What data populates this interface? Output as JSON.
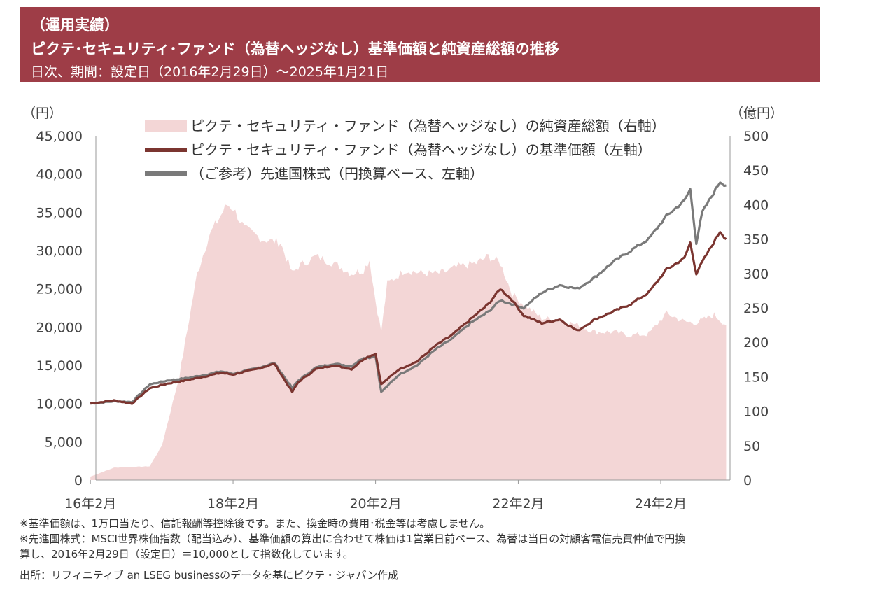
{
  "header": {
    "line1": "（運用実績）",
    "line2": "ピクテ･セキュリティ･ファンド（為替ヘッジなし）基準価額と純資産総額の推移",
    "line3": "日次、期間：設定日（2016年2月29日）～2025年1月21日"
  },
  "colors": {
    "header_bg": "#9e3d47",
    "nav": "#7b3530",
    "msci": "#7a7a7a",
    "aum": "#f3d6d6"
  },
  "chart_data": {
    "type": "line",
    "ylabel_left": "（円）",
    "ylabel_right": "（億円）",
    "ylim_left": [
      0,
      45000
    ],
    "ylim_right": [
      0,
      500
    ],
    "yticks_left": [
      "0",
      "5,000",
      "10,000",
      "15,000",
      "20,000",
      "25,000",
      "30,000",
      "35,000",
      "40,000",
      "45,000"
    ],
    "yticks_right": [
      "0",
      "50",
      "100",
      "150",
      "200",
      "250",
      "300",
      "350",
      "400",
      "450",
      "500"
    ],
    "xticks": [
      "16年2月",
      "18年2月",
      "20年2月",
      "22年2月",
      "24年2月"
    ],
    "xtick_positions": [
      "2016-02",
      "2018-02",
      "2020-02",
      "2022-02",
      "2024-02"
    ],
    "legend_placement": "top",
    "series": [
      {
        "name": "ピクテ・セキュリティ・ファンド（為替ヘッジなし）の純資産総額（右軸）",
        "type": "area",
        "axis": "right",
        "x": [
          "2016-02",
          "2016-06",
          "2016-12",
          "2017-02",
          "2017-05",
          "2017-08",
          "2017-10",
          "2018-01",
          "2018-02",
          "2018-04",
          "2018-07",
          "2018-10",
          "2018-12",
          "2019-01",
          "2019-04",
          "2019-07",
          "2019-10",
          "2019-12",
          "2020-01",
          "2020-02",
          "2020-03",
          "2020-04",
          "2020-07",
          "2020-10",
          "2021-01",
          "2021-04",
          "2021-07",
          "2021-09",
          "2021-11",
          "2022-01",
          "2022-03",
          "2022-06",
          "2022-09",
          "2022-12",
          "2023-03",
          "2023-06",
          "2023-09",
          "2023-12",
          "2024-03",
          "2024-06",
          "2024-08",
          "2024-11",
          "2025-01"
        ],
        "values": [
          5,
          18,
          20,
          50,
          150,
          300,
          355,
          400,
          395,
          365,
          350,
          345,
          300,
          310,
          325,
          315,
          300,
          305,
          320,
          260,
          215,
          285,
          305,
          300,
          300,
          310,
          315,
          325,
          315,
          270,
          255,
          235,
          232,
          225,
          215,
          215,
          210,
          212,
          242,
          230,
          228,
          240,
          225
        ]
      },
      {
        "name": "ピクテ・セキュリティ・ファンド（為替ヘッジなし）の基準価額（左軸）",
        "type": "line",
        "axis": "left",
        "x": [
          "2016-02",
          "2016-06",
          "2016-09",
          "2016-12",
          "2017-03",
          "2017-06",
          "2017-09",
          "2017-12",
          "2018-02",
          "2018-06",
          "2018-09",
          "2018-12",
          "2019-01",
          "2019-04",
          "2019-07",
          "2019-10",
          "2019-12",
          "2020-01",
          "2020-02",
          "2020-03",
          "2020-06",
          "2020-09",
          "2020-12",
          "2021-03",
          "2021-06",
          "2021-09",
          "2021-11",
          "2022-01",
          "2022-03",
          "2022-06",
          "2022-09",
          "2022-12",
          "2023-03",
          "2023-06",
          "2023-09",
          "2023-12",
          "2024-03",
          "2024-06",
          "2024-07",
          "2024-08",
          "2024-09",
          "2024-12",
          "2025-01"
        ],
        "values": [
          10000,
          10400,
          10000,
          12000,
          12600,
          13000,
          13500,
          14000,
          13800,
          14500,
          15200,
          11500,
          12800,
          14500,
          15000,
          14500,
          15800,
          16200,
          16500,
          12500,
          14500,
          15500,
          17500,
          19000,
          21000,
          23000,
          25000,
          23500,
          21500,
          20500,
          21000,
          19500,
          21000,
          22000,
          23000,
          24500,
          27500,
          29000,
          31000,
          27000,
          28500,
          32500,
          31500
        ]
      },
      {
        "name": "（ご参考）先進国株式（円換算ベース、左軸）",
        "type": "line",
        "axis": "left",
        "x": [
          "2016-02",
          "2016-06",
          "2016-09",
          "2016-12",
          "2017-03",
          "2017-06",
          "2017-09",
          "2017-12",
          "2018-02",
          "2018-06",
          "2018-09",
          "2018-12",
          "2019-01",
          "2019-04",
          "2019-07",
          "2019-10",
          "2019-12",
          "2020-01",
          "2020-02",
          "2020-03",
          "2020-06",
          "2020-09",
          "2020-12",
          "2021-03",
          "2021-06",
          "2021-09",
          "2021-11",
          "2022-01",
          "2022-03",
          "2022-06",
          "2022-09",
          "2022-12",
          "2023-03",
          "2023-06",
          "2023-09",
          "2023-12",
          "2024-03",
          "2024-06",
          "2024-07",
          "2024-08",
          "2024-09",
          "2024-12",
          "2025-01"
        ],
        "values": [
          10000,
          10300,
          10200,
          12500,
          13000,
          13300,
          13700,
          14200,
          13900,
          14600,
          15300,
          12000,
          13000,
          14700,
          15200,
          14900,
          16000,
          16000,
          16200,
          11500,
          13800,
          15000,
          17000,
          18500,
          20500,
          22000,
          23500,
          23000,
          22500,
          24500,
          25500,
          25000,
          26500,
          28500,
          30000,
          31500,
          34500,
          36500,
          38000,
          31000,
          35000,
          39000,
          38500
        ]
      }
    ]
  },
  "notes": {
    "line1": "※基準価額は、1万口当たり、信託報酬等控除後です。また、換金時の費用･税金等は考慮しません。",
    "line2": "※先進国株式：MSCI世界株価指数（配当込み）、基準価額の算出に合わせて株価は1営業日前ベース、為替は当日の対顧客電信売買仲値で円換",
    "line3": "算し、2016年2月29日（設定日）＝10,000として指数化しています。",
    "source": "出所：リフィニティブ an LSEG businessのデータを基にピクテ・ジャパン作成"
  }
}
